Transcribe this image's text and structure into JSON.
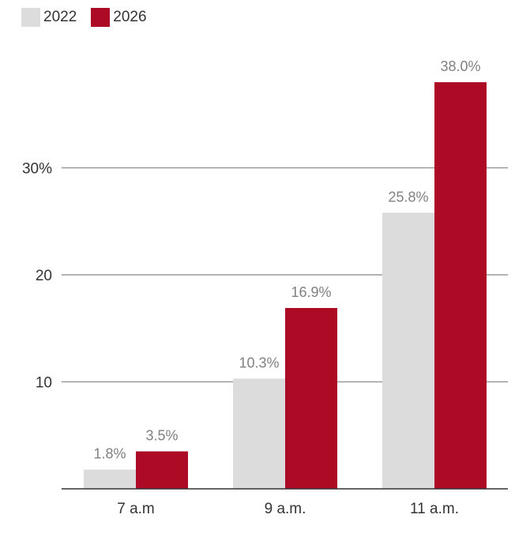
{
  "colors": {
    "series_2022": "#dcdcdc",
    "series_2026": "#ad0a25",
    "grid": "#9a9a9a",
    "axis": "#333333",
    "value_label": "#808080",
    "tick_label": "#333333"
  },
  "legend": {
    "items": [
      {
        "label": "2022"
      },
      {
        "label": "2026"
      }
    ]
  },
  "chart_data": {
    "type": "bar",
    "categories": [
      "7 a.m",
      "9 a.m.",
      "11 a.m."
    ],
    "series": [
      {
        "name": "2022",
        "values": [
          1.8,
          10.3,
          25.8
        ],
        "labels": [
          "1.8%",
          "10.3%",
          "25.8%"
        ]
      },
      {
        "name": "2026",
        "values": [
          3.5,
          16.9,
          38.0
        ],
        "labels": [
          "3.5%",
          "16.9%",
          "38.0%"
        ]
      }
    ],
    "yticks": [
      {
        "value": 10,
        "label": "10"
      },
      {
        "value": 20,
        "label": "20"
      },
      {
        "value": 30,
        "label": "30%"
      }
    ],
    "ylim": [
      0,
      40
    ],
    "grid": true,
    "legend_position": "top-left",
    "title": "",
    "xlabel": "",
    "ylabel": ""
  }
}
